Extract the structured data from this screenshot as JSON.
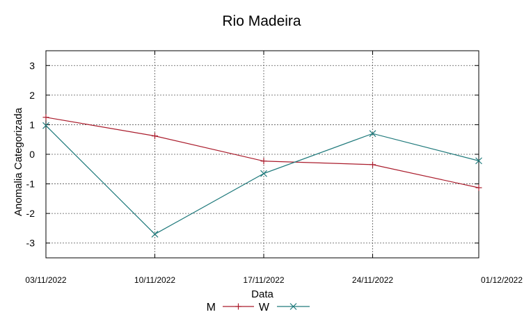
{
  "chart_data": {
    "type": "line",
    "title": "Rio Madeira",
    "xlabel": "Data",
    "ylabel": "Anomalia Categorizada",
    "categories": [
      "03/11/2022",
      "10/11/2022",
      "17/11/2022",
      "24/11/2022",
      "01/12/2022"
    ],
    "yticks": [
      "3",
      "2",
      "1",
      "0",
      "-1",
      "-2",
      "-3"
    ],
    "ylim": [
      -3.5,
      3.5
    ],
    "grid": true,
    "legend_position": "bottom-center",
    "series": [
      {
        "name": "M",
        "color": "#aa1c2c",
        "marker": "plus",
        "values": [
          1.25,
          0.62,
          -0.23,
          -0.35,
          -1.13
        ]
      },
      {
        "name": "W",
        "color": "#207a7c",
        "marker": "cross",
        "values": [
          0.97,
          -2.7,
          -0.65,
          0.7,
          -0.22
        ]
      }
    ]
  }
}
